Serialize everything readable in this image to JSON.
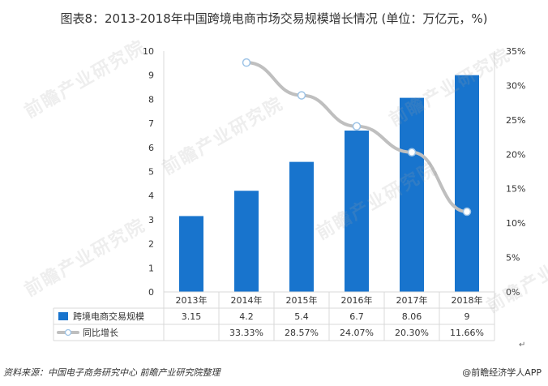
{
  "title": "图表8：2013-2018年中国跨境电商市场交易规模增长情况 (单位：万亿元，%)",
  "source": {
    "label": "资料来源：",
    "text": "中国电子商务研究中心 前瞻产业研究院整理"
  },
  "brand": "@前瞻经济学人APP",
  "watermark_text": "前瞻产业研究院",
  "colors": {
    "bar": "#1874CD",
    "line": "#BFBFBF",
    "axis": "#D9D9D9",
    "text": "#333333",
    "marker_fill": "#FFFFFF",
    "marker_stroke": "#9DC3E6"
  },
  "chart_data": {
    "type": "bar",
    "title": "图表8：2013-2018年中国跨境电商市场交易规模增长情况 (单位：万亿元，%)",
    "categories": [
      "2013年",
      "2014年",
      "2015年",
      "2016年",
      "2017年",
      "2018年"
    ],
    "series": [
      {
        "name": "跨境电商交易规模",
        "type": "bar",
        "axis": "left",
        "values": [
          3.15,
          4.2,
          5.4,
          6.7,
          8.06,
          9
        ],
        "labels": [
          "3.15",
          "4.2",
          "5.4",
          "6.7",
          "8.06",
          "9"
        ]
      },
      {
        "name": "同比增长",
        "type": "line",
        "axis": "right",
        "values": [
          null,
          33.33,
          28.57,
          24.07,
          20.3,
          11.66
        ],
        "labels": [
          "",
          "33.33%",
          "28.57%",
          "24.07%",
          "20.30%",
          "11.66%"
        ]
      }
    ],
    "left_axis": {
      "min": 0,
      "max": 10,
      "step": 1,
      "ticks": [
        "0",
        "1",
        "2",
        "3",
        "4",
        "5",
        "6",
        "7",
        "8",
        "9",
        "10"
      ]
    },
    "right_axis": {
      "min": 0,
      "max": 35,
      "step": 5,
      "ticks": [
        "0%",
        "5%",
        "10%",
        "15%",
        "20%",
        "25%",
        "30%",
        "35%"
      ]
    },
    "grid": false,
    "legend": "data-table"
  }
}
